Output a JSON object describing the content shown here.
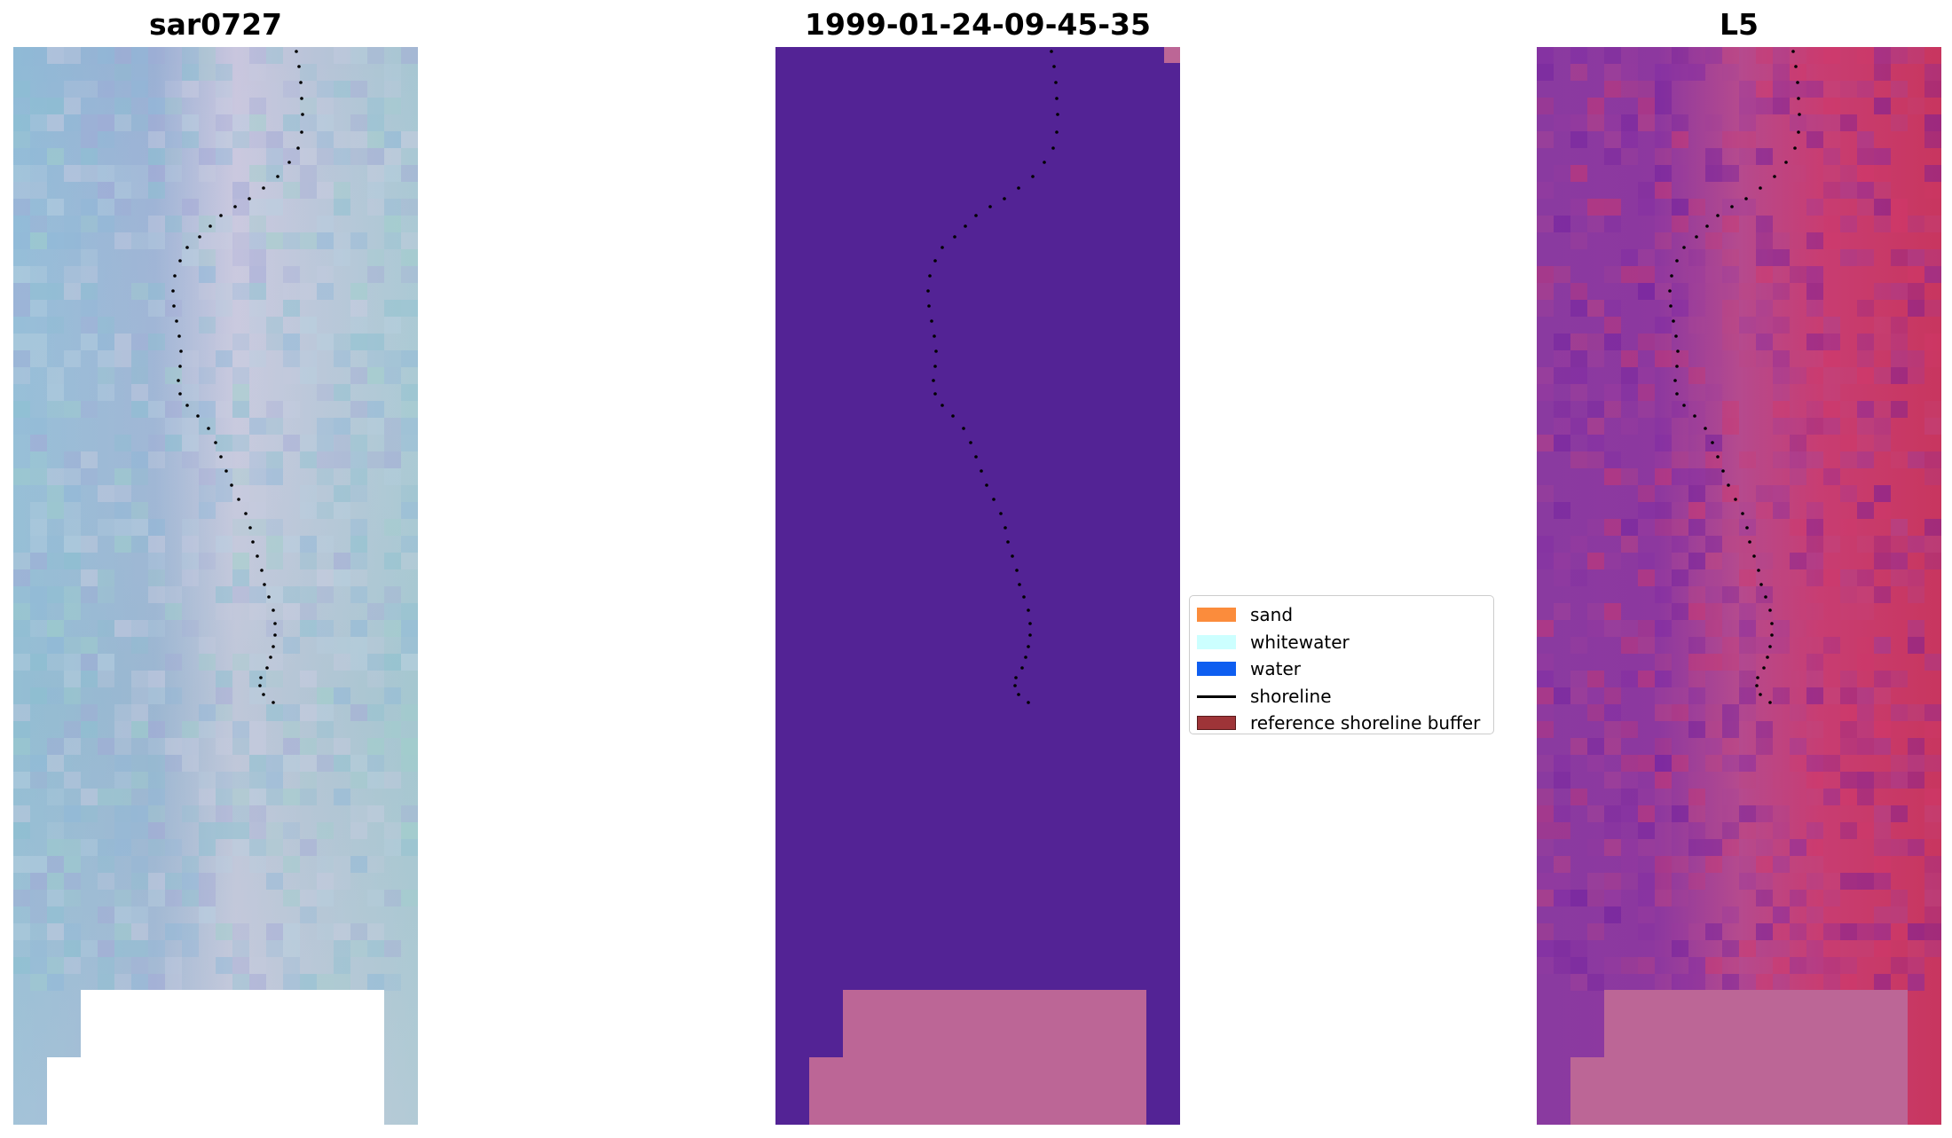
{
  "panels": {
    "left_title": "sar0727",
    "middle_title": "1999-01-24-09-45-35",
    "right_title": "L5"
  },
  "legend": {
    "items": [
      {
        "label": "sand",
        "color": "#FB8C3C",
        "kind": "patch",
        "icon": "sand-swatch-icon"
      },
      {
        "label": "whitewater",
        "color": "#CCFFFF",
        "kind": "patch",
        "icon": "whitewater-swatch-icon"
      },
      {
        "label": "water",
        "color": "#0E5EF0",
        "kind": "patch",
        "icon": "water-swatch-icon"
      },
      {
        "label": "shoreline",
        "color": "#000000",
        "kind": "line",
        "icon": "shoreline-line-icon"
      },
      {
        "label": "reference shoreline buffer",
        "color": "#9E3438",
        "kind": "patch",
        "icon": "buffer-swatch-icon"
      }
    ]
  },
  "colors": {
    "classified_background": "#532395",
    "nodata_overlay": "#BC6696",
    "shoreline_points": "#000000"
  }
}
